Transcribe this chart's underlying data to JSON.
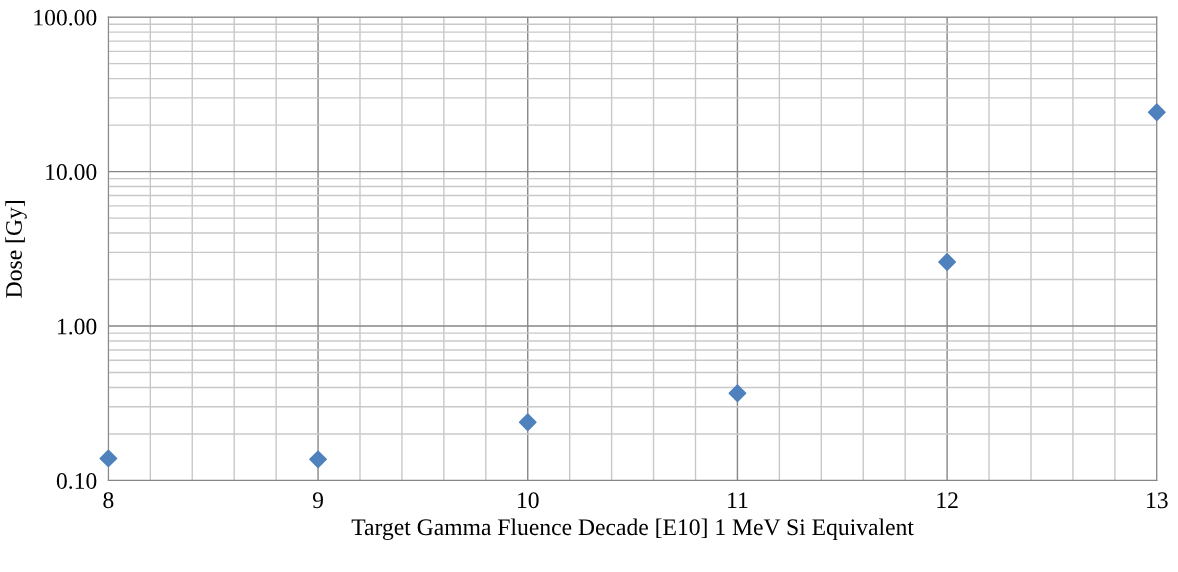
{
  "chart_data": {
    "type": "scatter",
    "xlabel": "Target Gamma Fluence Decade [E10] 1 MeV Si Equivalent",
    "ylabel": "Dose [Gy]",
    "x": [
      8,
      9,
      10,
      11,
      12,
      13
    ],
    "series": [
      {
        "color": "#4f81bd",
        "values": [
          0.139,
          0.137,
          0.238,
          0.367,
          2.6,
          24.2
        ]
      }
    ],
    "xlim": [
      8,
      13
    ],
    "xticks": [
      8,
      9,
      10,
      11,
      12,
      13
    ],
    "ylim": [
      0.1,
      100
    ],
    "yticks": [
      {
        "value": 0.1,
        "label": "0.10"
      },
      {
        "value": 1,
        "label": "1.00"
      },
      {
        "value": 10,
        "label": "10.00"
      },
      {
        "value": 100,
        "label": "100.00"
      }
    ],
    "log": "y",
    "grid": true,
    "marker": "diamond",
    "legend": false
  }
}
